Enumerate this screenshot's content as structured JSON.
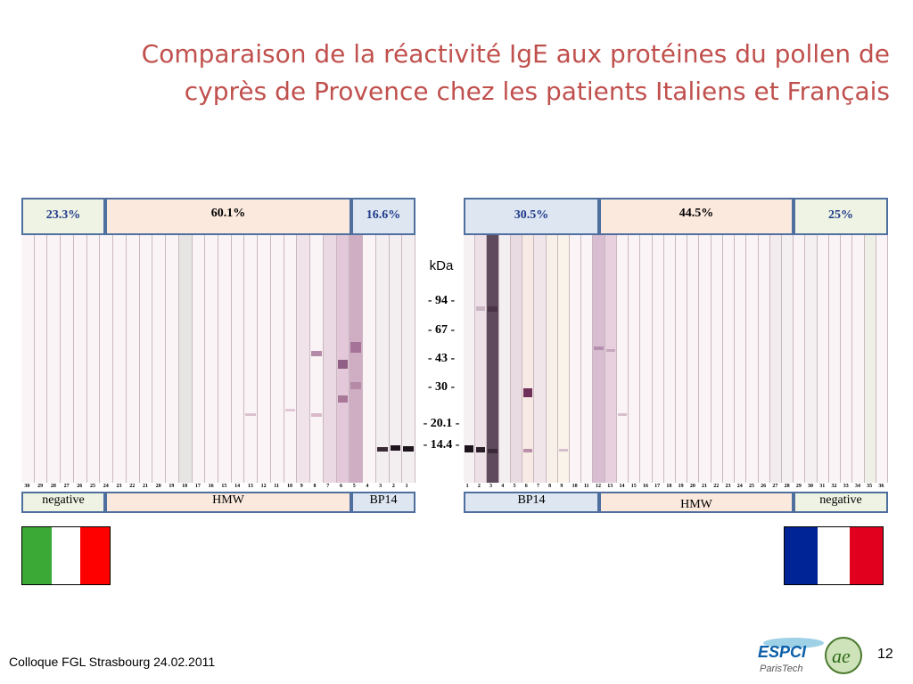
{
  "slide": {
    "title_line1": "Comparaison de la réactivité IgE aux protéines du pollen de",
    "title_line2": "cyprès de Provence chez les patients Italiens et Français",
    "footer": "Colloque FGL Strasbourg  24.02.2011",
    "page_number": "12"
  },
  "left_panel": {
    "groups": [
      {
        "percent": "23.3%",
        "label": "negative"
      },
      {
        "percent": "60.1%",
        "label": "HMW"
      },
      {
        "percent": "16.6%",
        "label": "BP14"
      }
    ],
    "lane_numbers": [
      "30",
      "29",
      "28",
      "27",
      "26",
      "25",
      "24",
      "23",
      "22",
      "21",
      "20",
      "19",
      "18",
      "17",
      "16",
      "15",
      "14",
      "13",
      "12",
      "11",
      "10",
      "9",
      "8",
      "7",
      "6",
      "5",
      "4",
      "3",
      "2",
      "1"
    ],
    "flag": "italy"
  },
  "right_panel": {
    "groups": [
      {
        "percent": "30.5%",
        "label": "BP14"
      },
      {
        "percent": "44.5%",
        "label": "HMW"
      },
      {
        "percent": "25%",
        "label": "negative"
      }
    ],
    "lane_numbers": [
      "1",
      "2",
      "3",
      "4",
      "5",
      "6",
      "7",
      "8",
      "9",
      "10",
      "11",
      "12",
      "13",
      "14",
      "15",
      "16",
      "17",
      "18",
      "19",
      "20",
      "21",
      "22",
      "23",
      "24",
      "25",
      "26",
      "27",
      "28",
      "29",
      "30",
      "31",
      "32",
      "33",
      "34",
      "35",
      "36"
    ],
    "flag": "france"
  },
  "markers": {
    "unit": "kDa",
    "values": [
      "-   94   -",
      "-   67   -",
      "-   43   -",
      "-   30   -",
      "- 20.1 -",
      "- 14.4 -"
    ]
  },
  "colors": {
    "title": "#c0504d",
    "negative_bg": "#eef3e3",
    "hmw_bg": "#fbe9dd",
    "bp14_bg": "#dde6f1",
    "italy": [
      "#3aa935",
      "#ffffff",
      "#ff0000"
    ],
    "france": [
      "#002395",
      "#ffffff",
      "#e1001e"
    ]
  },
  "logo": {
    "text_espci": "ESPCI",
    "text_paristech": "ParisTech",
    "text_ae": "ae"
  }
}
